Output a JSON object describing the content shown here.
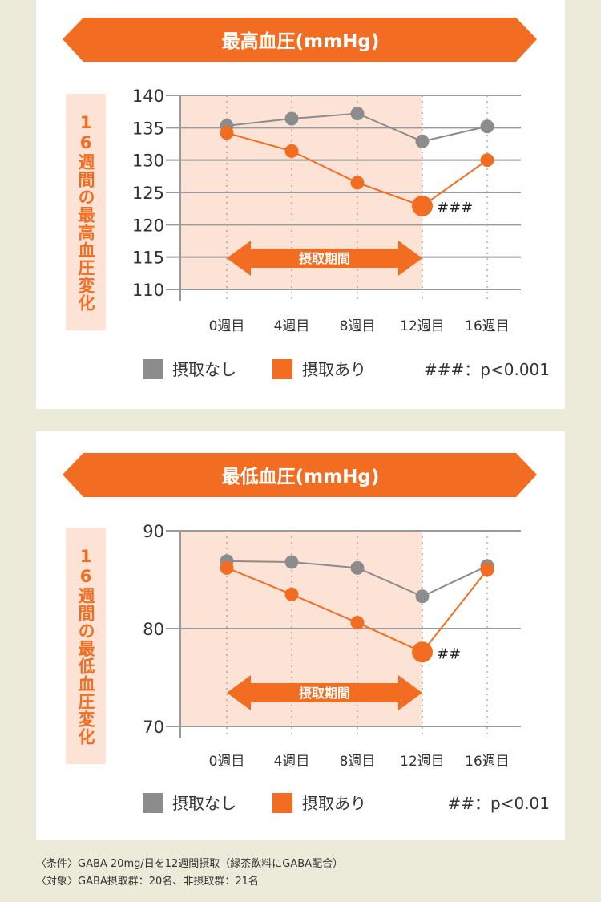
{
  "colors": {
    "accent": "#f26d21",
    "gray": "#8c8c8c",
    "shade": "#fde3d6",
    "background": "#ecead9"
  },
  "chart_data": [
    {
      "type": "line",
      "title": "最高血圧(mmHg)",
      "ylabel": "16週間の最高血圧変化",
      "categories": [
        "0週目",
        "4週目",
        "8週目",
        "12週目",
        "16週目"
      ],
      "ylim": [
        110,
        140
      ],
      "yticks": [
        140,
        135,
        130,
        125,
        120,
        115,
        110
      ],
      "grid": true,
      "intake_period_label": "摂取期間",
      "series": [
        {
          "name": "摂取なし",
          "color": "#8c8c8c",
          "values": [
            135.3,
            136.4,
            137.2,
            132.9,
            135.2
          ]
        },
        {
          "name": "摂取あり",
          "color": "#f26d21",
          "values": [
            134.2,
            131.4,
            126.5,
            122.9,
            130.0
          ]
        }
      ],
      "annotation": {
        "label": "###",
        "category": "12週目"
      },
      "significance_note": "###：p<0.001",
      "legend": "bottom"
    },
    {
      "type": "line",
      "title": "最低血圧(mmHg)",
      "ylabel": "16週間の最低血圧変化",
      "categories": [
        "0週目",
        "4週目",
        "8週目",
        "12週目",
        "16週目"
      ],
      "ylim": [
        70,
        90
      ],
      "yticks": [
        90,
        80,
        70
      ],
      "grid": true,
      "intake_period_label": "摂取期間",
      "series": [
        {
          "name": "摂取なし",
          "color": "#8c8c8c",
          "values": [
            86.9,
            86.8,
            86.2,
            83.3,
            86.4
          ]
        },
        {
          "name": "摂取あり",
          "color": "#f26d21",
          "values": [
            86.2,
            83.5,
            80.6,
            77.6,
            86.0
          ]
        }
      ],
      "annotation": {
        "label": "##",
        "category": "12週目"
      },
      "significance_note": "##：p<0.01",
      "legend": "bottom"
    }
  ],
  "footnotes": [
    "〈条件〉GABA 20mg/日を12週間摂取（緑茶飲料にGABA配合）",
    "〈対象〉GABA摂取群：20名、非摂取群：21名"
  ]
}
